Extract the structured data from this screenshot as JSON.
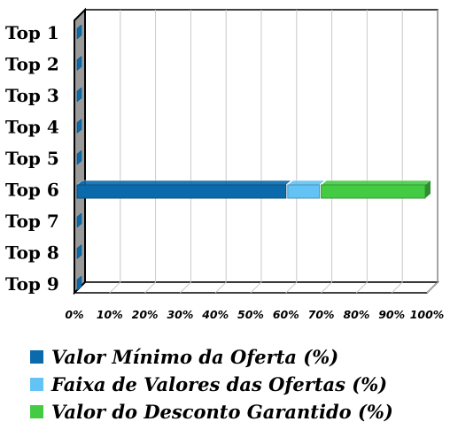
{
  "chart_data": {
    "type": "bar",
    "orientation": "horizontal",
    "stacked": true,
    "categories": [
      "Top 1",
      "Top 2",
      "Top 3",
      "Top 4",
      "Top 5",
      "Top 6",
      "Top 7",
      "Top 8",
      "Top 9"
    ],
    "series": [
      {
        "name": "Valor Mínimo da Oferta (%)",
        "color": "#0a6aab",
        "values": [
          0,
          0,
          0,
          0,
          0,
          60.5,
          0,
          0,
          0
        ]
      },
      {
        "name": "Faixa de Valores das Ofertas (%)",
        "color": "#63c3f4",
        "values": [
          0,
          0,
          0,
          0,
          0,
          9.5,
          0,
          0,
          0
        ]
      },
      {
        "name": "Valor do Desconto Garantido (%)",
        "color": "#44cb44",
        "values": [
          0,
          0,
          0,
          0,
          0,
          30,
          0,
          0,
          0
        ]
      }
    ],
    "xticks": [
      "0%",
      "10%",
      "20%",
      "30%",
      "40%",
      "50%",
      "60%",
      "70%",
      "80%",
      "90%",
      "100%"
    ],
    "xlim": [
      0,
      100
    ],
    "grid": true,
    "legend_position": "bottom"
  }
}
